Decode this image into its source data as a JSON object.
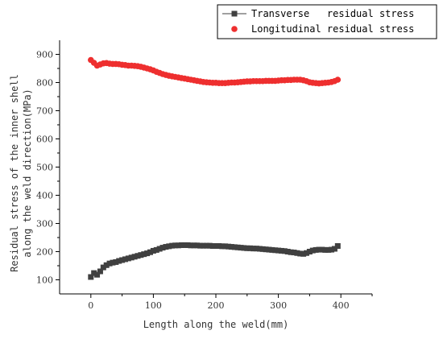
{
  "chart_data": {
    "type": "scatter",
    "title": "",
    "xlabel": "Length along the weld(mm)",
    "ylabel_lines": [
      "Residual stress of the inner shell",
      "along the weld direction(MPa)"
    ],
    "xlim": [
      -50,
      450
    ],
    "ylim": [
      50,
      950
    ],
    "x_ticks": [
      0,
      100,
      200,
      300,
      400
    ],
    "y_ticks": [
      100,
      200,
      300,
      400,
      500,
      600,
      700,
      800,
      900
    ],
    "grid": false,
    "legend_position": "top-right",
    "series": [
      {
        "name": "Transverse   residual stress",
        "marker": "square",
        "color": "#404040",
        "points": [
          [
            0,
            110
          ],
          [
            5,
            124
          ],
          [
            10,
            118
          ],
          [
            15,
            130
          ],
          [
            20,
            144
          ],
          [
            25,
            152
          ],
          [
            30,
            158
          ],
          [
            35,
            161
          ],
          [
            40,
            163
          ],
          [
            45,
            167
          ],
          [
            50,
            170
          ],
          [
            55,
            173
          ],
          [
            60,
            176
          ],
          [
            65,
            179
          ],
          [
            70,
            182
          ],
          [
            75,
            185
          ],
          [
            80,
            188
          ],
          [
            85,
            191
          ],
          [
            90,
            194
          ],
          [
            95,
            198
          ],
          [
            100,
            203
          ],
          [
            105,
            206
          ],
          [
            110,
            210
          ],
          [
            115,
            214
          ],
          [
            120,
            217
          ],
          [
            125,
            219
          ],
          [
            130,
            221
          ],
          [
            135,
            222
          ],
          [
            140,
            222
          ],
          [
            145,
            223
          ],
          [
            150,
            223
          ],
          [
            155,
            223
          ],
          [
            160,
            222
          ],
          [
            165,
            222
          ],
          [
            170,
            222
          ],
          [
            175,
            221
          ],
          [
            180,
            221
          ],
          [
            185,
            221
          ],
          [
            190,
            221
          ],
          [
            195,
            220
          ],
          [
            200,
            220
          ],
          [
            205,
            220
          ],
          [
            210,
            219
          ],
          [
            215,
            219
          ],
          [
            220,
            218
          ],
          [
            225,
            217
          ],
          [
            230,
            216
          ],
          [
            235,
            215
          ],
          [
            240,
            214
          ],
          [
            245,
            213
          ],
          [
            250,
            212
          ],
          [
            255,
            212
          ],
          [
            260,
            211
          ],
          [
            265,
            211
          ],
          [
            270,
            210
          ],
          [
            275,
            209
          ],
          [
            280,
            208
          ],
          [
            285,
            207
          ],
          [
            290,
            206
          ],
          [
            295,
            205
          ],
          [
            300,
            204
          ],
          [
            305,
            203
          ],
          [
            310,
            202
          ],
          [
            315,
            200
          ],
          [
            320,
            198
          ],
          [
            325,
            197
          ],
          [
            330,
            195
          ],
          [
            335,
            193
          ],
          [
            340,
            192
          ],
          [
            345,
            195
          ],
          [
            350,
            200
          ],
          [
            355,
            204
          ],
          [
            360,
            206
          ],
          [
            365,
            207
          ],
          [
            370,
            207
          ],
          [
            375,
            206
          ],
          [
            380,
            206
          ],
          [
            385,
            207
          ],
          [
            390,
            210
          ],
          [
            395,
            220
          ]
        ]
      },
      {
        "name": "Longitudinal residual stress",
        "marker": "circle",
        "color": "#ee2f2f",
        "points": [
          [
            0,
            880
          ],
          [
            5,
            870
          ],
          [
            10,
            860
          ],
          [
            15,
            864
          ],
          [
            20,
            868
          ],
          [
            25,
            869
          ],
          [
            30,
            867
          ],
          [
            35,
            866
          ],
          [
            40,
            866
          ],
          [
            45,
            865
          ],
          [
            50,
            863
          ],
          [
            55,
            862
          ],
          [
            60,
            860
          ],
          [
            65,
            860
          ],
          [
            70,
            859
          ],
          [
            75,
            858
          ],
          [
            80,
            856
          ],
          [
            85,
            853
          ],
          [
            90,
            850
          ],
          [
            95,
            847
          ],
          [
            100,
            843
          ],
          [
            105,
            838
          ],
          [
            110,
            834
          ],
          [
            115,
            830
          ],
          [
            120,
            827
          ],
          [
            125,
            824
          ],
          [
            130,
            822
          ],
          [
            135,
            820
          ],
          [
            140,
            818
          ],
          [
            145,
            816
          ],
          [
            150,
            814
          ],
          [
            155,
            812
          ],
          [
            160,
            810
          ],
          [
            165,
            808
          ],
          [
            170,
            806
          ],
          [
            175,
            804
          ],
          [
            180,
            802
          ],
          [
            185,
            801
          ],
          [
            190,
            800
          ],
          [
            195,
            799
          ],
          [
            200,
            799
          ],
          [
            205,
            798
          ],
          [
            210,
            798
          ],
          [
            215,
            798
          ],
          [
            220,
            799
          ],
          [
            225,
            800
          ],
          [
            230,
            800
          ],
          [
            235,
            801
          ],
          [
            240,
            802
          ],
          [
            245,
            803
          ],
          [
            250,
            804
          ],
          [
            255,
            804
          ],
          [
            260,
            805
          ],
          [
            265,
            805
          ],
          [
            270,
            805
          ],
          [
            275,
            805
          ],
          [
            280,
            806
          ],
          [
            285,
            806
          ],
          [
            290,
            806
          ],
          [
            295,
            806
          ],
          [
            300,
            807
          ],
          [
            305,
            808
          ],
          [
            310,
            808
          ],
          [
            315,
            809
          ],
          [
            320,
            809
          ],
          [
            325,
            810
          ],
          [
            330,
            810
          ],
          [
            335,
            810
          ],
          [
            340,
            808
          ],
          [
            345,
            805
          ],
          [
            350,
            801
          ],
          [
            355,
            799
          ],
          [
            360,
            798
          ],
          [
            365,
            797
          ],
          [
            370,
            798
          ],
          [
            375,
            799
          ],
          [
            380,
            800
          ],
          [
            385,
            802
          ],
          [
            390,
            805
          ],
          [
            395,
            810
          ]
        ]
      }
    ]
  }
}
